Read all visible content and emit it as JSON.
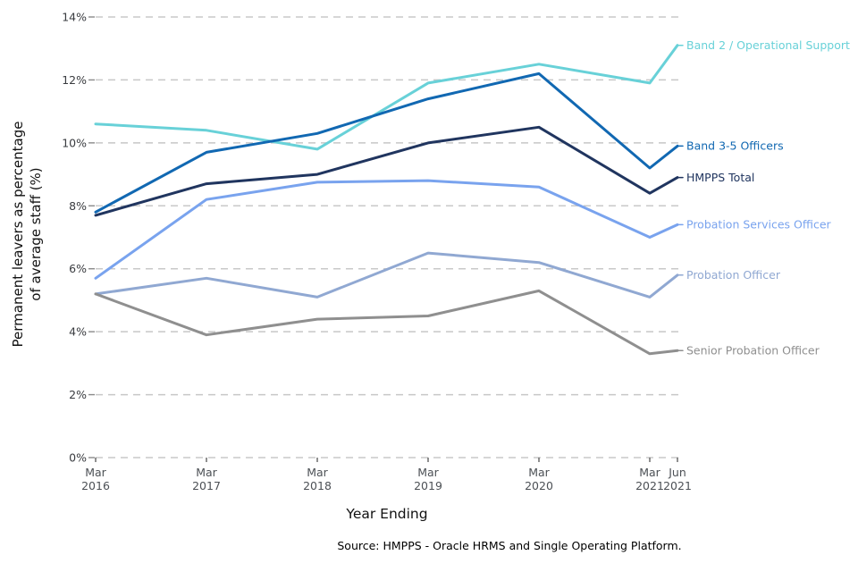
{
  "figure": {
    "y_axis_title_line1": "Permanent leavers as percentage",
    "y_axis_title_line2": "of average staff (%)",
    "x_axis_title": "Year Ending",
    "source_note": "Source: HMPPS - Oracle HRMS and Single Operating Platform."
  },
  "chart_data": {
    "type": "line",
    "title": "",
    "xlabel": "Year Ending",
    "ylabel": "Permanent leavers as percentage of average staff (%)",
    "x_categories": [
      "Mar 2016",
      "Mar 2017",
      "Mar 2018",
      "Mar 2019",
      "Mar 2020",
      "Mar 2021",
      "Jun 2021"
    ],
    "x_tick_lines": [
      [
        "Mar",
        "2016"
      ],
      [
        "Mar",
        "2017"
      ],
      [
        "Mar",
        "2018"
      ],
      [
        "Mar",
        "2019"
      ],
      [
        "Mar",
        "2020"
      ],
      [
        "Mar",
        "2021"
      ],
      [
        "Jun",
        "2021"
      ]
    ],
    "x_numeric": [
      2016.25,
      2017.25,
      2018.25,
      2019.25,
      2020.25,
      2021.25,
      2021.5
    ],
    "xlim": [
      2016.25,
      2021.5
    ],
    "ylim": [
      0,
      14
    ],
    "y_ticks": [
      0,
      2,
      4,
      6,
      8,
      10,
      12,
      14
    ],
    "y_tick_suffix": "%",
    "grid": {
      "horizontal_dashed": true,
      "color": "#c8c8c8"
    },
    "legend_position": "direct-labels-right",
    "axis_text_color_y": "#3a3c40",
    "axis_text_color_x": "#4c5055",
    "series": [
      {
        "name": "Band 2 / Operational Support",
        "color": "#68d1d8",
        "values": [
          10.6,
          10.4,
          9.8,
          11.9,
          12.5,
          11.9,
          13.1
        ]
      },
      {
        "name": "Band 3-5 Officers",
        "color": "#1168b2",
        "values": [
          7.8,
          9.7,
          10.3,
          11.4,
          12.2,
          9.2,
          9.9
        ]
      },
      {
        "name": "HMPPS Total",
        "color": "#20355f",
        "values": [
          7.7,
          8.7,
          9.0,
          10.0,
          10.5,
          8.4,
          8.9
        ]
      },
      {
        "name": "Probation Services Officer",
        "color": "#79a3ee",
        "values": [
          5.7,
          8.2,
          8.75,
          8.8,
          8.6,
          7.0,
          7.4
        ]
      },
      {
        "name": "Probation Officer",
        "color": "#90a8d2",
        "values": [
          5.2,
          5.7,
          5.1,
          6.5,
          6.2,
          5.1,
          5.8
        ]
      },
      {
        "name": "Senior Probation Officer",
        "color": "#8f8f8f",
        "values": [
          5.2,
          3.9,
          4.4,
          4.5,
          5.3,
          3.3,
          3.4
        ]
      }
    ]
  }
}
